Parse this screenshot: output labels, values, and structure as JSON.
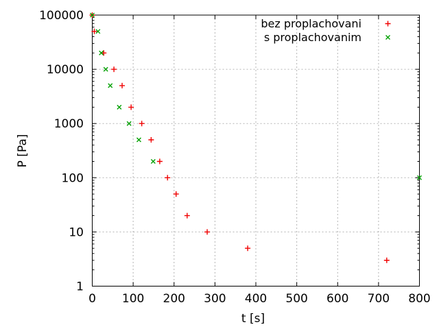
{
  "chart_data": {
    "type": "scatter",
    "title": "",
    "xlabel": "t [s]",
    "ylabel": "P [Pa]",
    "grid": true,
    "grid_color": "#b4b4b4",
    "border_color": "#000000",
    "text_color": "#000000",
    "legend_position": "top-right-inside",
    "x_axis": {
      "min": 0,
      "max": 800,
      "scale": "linear",
      "ticks": [
        0,
        100,
        200,
        300,
        400,
        500,
        600,
        700,
        800
      ],
      "tick_labels": [
        "0",
        "100",
        "200",
        "300",
        "400",
        "500",
        "600",
        "700",
        "800"
      ]
    },
    "y_axis": {
      "min": 1,
      "max": 100000,
      "scale": "log",
      "ticks": [
        1,
        10,
        100,
        1000,
        10000,
        100000
      ],
      "tick_labels": [
        "1",
        "10",
        "100",
        "1000",
        "10000",
        "100000"
      ]
    },
    "series": [
      {
        "name": "bez proplachovani",
        "marker": "plus",
        "color": "#f00000",
        "points": [
          [
            0,
            100000
          ],
          [
            5,
            50000
          ],
          [
            28,
            20000
          ],
          [
            53,
            10000
          ],
          [
            73,
            5000
          ],
          [
            95,
            2000
          ],
          [
            121,
            1000
          ],
          [
            144,
            500
          ],
          [
            165,
            200
          ],
          [
            184,
            100
          ],
          [
            205,
            50
          ],
          [
            232,
            20
          ],
          [
            281,
            10
          ],
          [
            380,
            5
          ],
          [
            720,
            3
          ]
        ]
      },
      {
        "name": "s proplachovanim",
        "marker": "cross",
        "color": "#00a000",
        "points": [
          [
            0,
            100000
          ],
          [
            14,
            50000
          ],
          [
            22,
            20000
          ],
          [
            33,
            10000
          ],
          [
            44,
            5000
          ],
          [
            66,
            2000
          ],
          [
            90,
            1000
          ],
          [
            114,
            500
          ],
          [
            149,
            200
          ],
          [
            800,
            100
          ]
        ]
      }
    ]
  }
}
